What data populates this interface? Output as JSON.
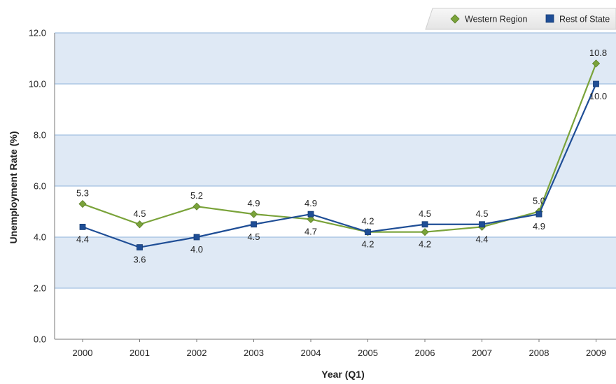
{
  "chart_data": {
    "type": "line",
    "xlabel": "Year (Q1)",
    "ylabel": "Unemployment Rate (%)",
    "ylim": [
      0,
      12
    ],
    "y_ticks": [
      "0.0",
      "2.0",
      "4.0",
      "6.0",
      "8.0",
      "10.0",
      "12.0"
    ],
    "categories": [
      "2000",
      "2001",
      "2002",
      "2003",
      "2004",
      "2005",
      "2006",
      "2007",
      "2008",
      "2009"
    ],
    "legend_position": "top-right",
    "grid": true,
    "series": [
      {
        "name": "Western Region",
        "color": "#7aa33a",
        "marker": "diamond",
        "values": [
          5.3,
          4.5,
          5.2,
          4.9,
          4.7,
          4.2,
          4.2,
          4.4,
          5.0,
          10.8
        ],
        "labels": [
          "5.3",
          "4.5",
          "5.2",
          "4.9",
          "4.7",
          "4.2",
          "4.2",
          "4.4",
          "5.0",
          "10.8"
        ]
      },
      {
        "name": "Rest of State",
        "color": "#1f4e96",
        "marker": "square",
        "values": [
          4.4,
          3.6,
          4.0,
          4.5,
          4.9,
          4.2,
          4.5,
          4.5,
          4.9,
          10.0
        ],
        "labels": [
          "4.4",
          "3.6",
          "4.0",
          "4.5",
          "4.9",
          "4.2",
          "4.5",
          "4.5",
          "4.9",
          "10.0"
        ]
      }
    ]
  }
}
